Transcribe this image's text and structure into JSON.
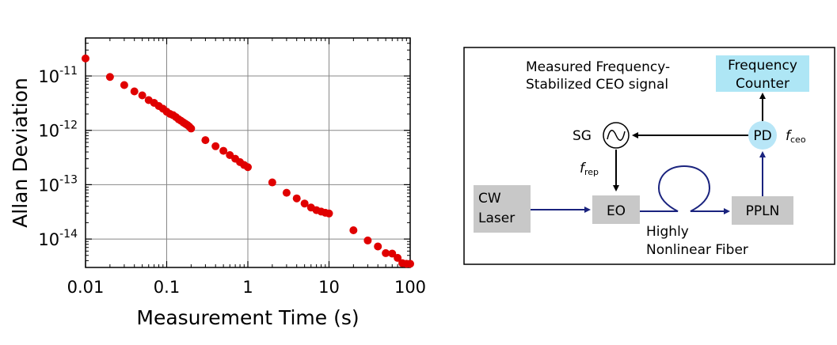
{
  "chart_data": {
    "type": "scatter",
    "xlabel": "Measurement Time (s)",
    "ylabel": "Allan Deviation",
    "xscale": "log",
    "yscale": "log",
    "xlim": [
      0.01,
      100
    ],
    "ylim": [
      3e-15,
      5e-11
    ],
    "grid": true,
    "marker_color": "#e00000",
    "x_ticks": [
      {
        "value": 0.01,
        "label": "0.01"
      },
      {
        "value": 0.1,
        "label": "0.1"
      },
      {
        "value": 1,
        "label": "1"
      },
      {
        "value": 10,
        "label": "10"
      },
      {
        "value": 100,
        "label": "100"
      }
    ],
    "y_ticks": [
      {
        "value": 1e-11,
        "base": "10",
        "exp": "-11"
      },
      {
        "value": 1e-12,
        "base": "10",
        "exp": "-12"
      },
      {
        "value": 1e-13,
        "base": "10",
        "exp": "-13"
      },
      {
        "value": 1e-14,
        "base": "10",
        "exp": "-14"
      }
    ],
    "series": [
      {
        "points": [
          [
            0.01,
            2.1e-11
          ],
          [
            0.02,
            9.6e-12
          ],
          [
            0.03,
            6.8e-12
          ],
          [
            0.04,
            5.2e-12
          ],
          [
            0.05,
            4.4e-12
          ],
          [
            0.06,
            3.6e-12
          ],
          [
            0.07,
            3.2e-12
          ],
          [
            0.08,
            2.8e-12
          ],
          [
            0.09,
            2.5e-12
          ],
          [
            0.1,
            2.2e-12
          ],
          [
            0.11,
            2e-12
          ],
          [
            0.12,
            1.9e-12
          ],
          [
            0.13,
            1.75e-12
          ],
          [
            0.14,
            1.6e-12
          ],
          [
            0.15,
            1.5e-12
          ],
          [
            0.16,
            1.4e-12
          ],
          [
            0.17,
            1.32e-12
          ],
          [
            0.18,
            1.25e-12
          ],
          [
            0.19,
            1.17e-12
          ],
          [
            0.2,
            1.08e-12
          ],
          [
            0.3,
            6.6e-13
          ],
          [
            0.4,
            5.1e-13
          ],
          [
            0.5,
            4.2e-13
          ],
          [
            0.6,
            3.5e-13
          ],
          [
            0.7,
            3e-13
          ],
          [
            0.8,
            2.6e-13
          ],
          [
            0.9,
            2.3e-13
          ],
          [
            1.0,
            2.1e-13
          ],
          [
            2,
            1.1e-13
          ],
          [
            3,
            7.1e-14
          ],
          [
            4,
            5.6e-14
          ],
          [
            5,
            4.5e-14
          ],
          [
            6,
            3.8e-14
          ],
          [
            7,
            3.4e-14
          ],
          [
            8,
            3.2e-14
          ],
          [
            9,
            3.05e-14
          ],
          [
            10,
            2.95e-14
          ],
          [
            20,
            1.45e-14
          ],
          [
            30,
            9.4e-15
          ],
          [
            40,
            7.3e-15
          ],
          [
            50,
            5.5e-15
          ],
          [
            60,
            5.4e-15
          ],
          [
            70,
            4.5e-15
          ],
          [
            80,
            3.6e-15
          ],
          [
            90,
            3.5e-15
          ],
          [
            100,
            3.5e-15
          ]
        ]
      }
    ]
  },
  "diagram": {
    "measured_line1": "Measured Frequency-",
    "measured_line2": "Stabilized CEO signal",
    "counter_line1": "Frequency",
    "counter_line2": "Counter",
    "pd_label": "PD",
    "fceo_f": "f",
    "fceo_sub": "ceo",
    "sg_label": "SG",
    "frep_f": "f",
    "frep_sub": "rep",
    "cw_line1": "CW",
    "cw_line2": "Laser",
    "eo_label": "EO",
    "ppln_label": "PPLN",
    "fiber_line1": "Highly",
    "fiber_line2": "Nonlinear Fiber",
    "colors": {
      "box_gray": "#c8c8c8",
      "counter_fill": "#aee6f5",
      "pd_fill": "#b8e6f7",
      "fiber_blue": "#1a237e",
      "arrow_black": "#000000"
    }
  }
}
